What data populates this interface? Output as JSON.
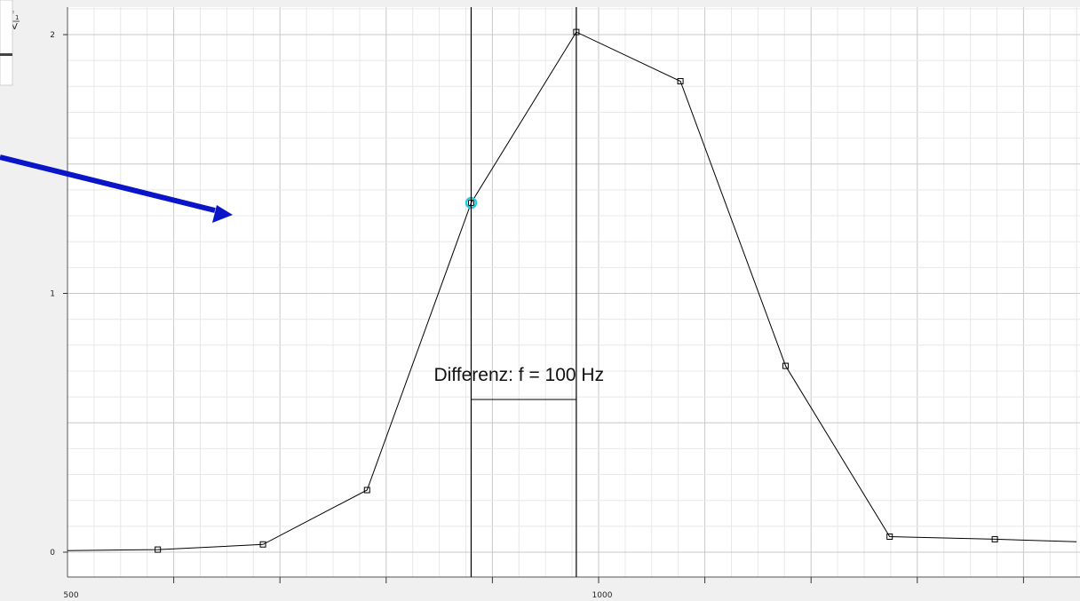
{
  "chart_data": {
    "type": "line",
    "title": "",
    "xlabel": "",
    "ylabel_top": "f",
    "ylabel_sub": "1",
    "ylabel_unit": "V",
    "xlim": [
      500,
      1450
    ],
    "ylim": [
      -0.1,
      2.1
    ],
    "x_tick_labels": [
      {
        "x": 500,
        "label": "500"
      },
      {
        "x": 1000,
        "label": "1000"
      }
    ],
    "y_tick_labels": [
      {
        "y": 0,
        "label": "0"
      },
      {
        "y": 1,
        "label": "1"
      },
      {
        "y": 2,
        "label": "2"
      }
    ],
    "x_minor_ticks": [
      600,
      700,
      800,
      900,
      1000,
      1100,
      1200,
      1300,
      1400
    ],
    "series": [
      {
        "x": [
          375,
          585,
          684,
          782,
          880,
          979,
          1077,
          1176,
          1274,
          1373,
          1450
        ],
        "y": [
          0.0,
          0.01,
          0.03,
          0.24,
          1.35,
          2.01,
          1.82,
          0.72,
          0.06,
          0.05,
          0.04
        ]
      }
    ],
    "cursors": {
      "x1": 880,
      "x2": 979
    },
    "marked_point": {
      "x": 880,
      "y": 1.35
    },
    "annotation": {
      "text": "Differenz:  f =  100 Hz",
      "bracket_y": 0.59
    },
    "grid": true,
    "colors": {
      "line": "#000000",
      "marker_highlight": "#22cfe0",
      "arrow": "#0a14c8",
      "plot_background": "#ffffff",
      "major_grid": "#c8c8c8",
      "minor_grid": "#e8e8e8"
    }
  },
  "overlay": {
    "arrow_icon": "arrow-right-down"
  }
}
